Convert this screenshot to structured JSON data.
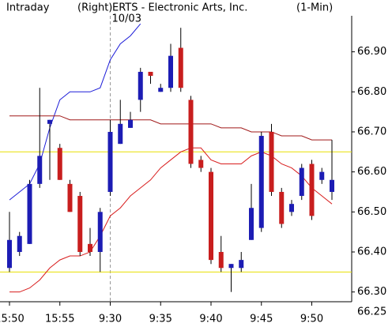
{
  "chart_data": {
    "type": "candlestick",
    "title": "ERTS - Electronic Arts, Inc.",
    "left_label": "Intraday",
    "side_label": "(Right)",
    "interval_label": "(1-Min)",
    "session_label": "10/03",
    "session_index": 10,
    "categories": [
      "15:50",
      null,
      null,
      null,
      null,
      "15:55",
      null,
      null,
      null,
      null,
      "9:30",
      null,
      null,
      null,
      null,
      "9:35",
      null,
      null,
      null,
      null,
      "9:40",
      null,
      null,
      null,
      null,
      "9:45",
      null,
      null,
      null,
      null,
      "9:50",
      null,
      null
    ],
    "open": [
      66.36,
      66.4,
      66.42,
      66.57,
      66.72,
      66.66,
      66.57,
      66.54,
      66.42,
      66.4,
      66.55,
      66.67,
      66.71,
      66.78,
      66.85,
      66.8,
      66.81,
      66.91,
      66.78,
      66.63,
      66.6,
      66.4,
      66.36,
      66.36,
      66.43,
      66.46,
      66.7,
      66.55,
      66.5,
      66.54,
      66.62,
      66.58,
      66.55
    ],
    "high": [
      66.5,
      66.45,
      66.58,
      66.81,
      66.73,
      66.67,
      66.58,
      66.55,
      66.46,
      66.51,
      66.73,
      66.78,
      66.75,
      66.86,
      66.85,
      66.82,
      66.92,
      66.96,
      66.79,
      66.64,
      66.61,
      66.44,
      66.37,
      66.4,
      66.57,
      66.7,
      66.72,
      66.56,
      66.53,
      66.62,
      66.63,
      66.61,
      66.68
    ],
    "low": [
      66.35,
      66.39,
      66.42,
      66.56,
      66.58,
      66.58,
      66.5,
      66.39,
      66.39,
      66.35,
      66.54,
      66.67,
      66.71,
      66.75,
      66.82,
      66.8,
      66.8,
      66.8,
      66.61,
      66.6,
      66.37,
      66.35,
      66.3,
      66.35,
      66.43,
      66.45,
      66.54,
      66.46,
      66.49,
      66.53,
      66.48,
      66.57,
      66.53
    ],
    "close": [
      66.43,
      66.44,
      66.57,
      66.64,
      66.73,
      66.58,
      66.5,
      66.4,
      66.4,
      66.5,
      66.7,
      66.72,
      66.73,
      66.85,
      66.84,
      66.81,
      66.89,
      66.81,
      66.62,
      66.61,
      66.38,
      66.36,
      66.37,
      66.38,
      66.51,
      66.69,
      66.55,
      66.47,
      66.52,
      66.61,
      66.49,
      66.6,
      66.58
    ],
    "up_color": "#1c1cb4",
    "down_color": "#c81e1e",
    "series": [
      {
        "color": "#1c1cd8",
        "values": [
          66.53,
          66.55,
          66.57,
          66.62,
          66.71,
          66.78,
          66.8,
          66.8,
          66.8,
          66.81,
          66.88,
          66.92,
          66.94,
          66.97,
          null,
          null,
          null,
          null,
          null,
          null,
          null,
          null,
          null,
          null,
          null,
          null,
          null,
          null,
          null,
          null,
          null,
          null,
          null
        ]
      },
      {
        "color": "#d81c1c",
        "values": [
          66.3,
          66.3,
          66.31,
          66.33,
          66.36,
          66.38,
          66.39,
          66.39,
          66.4,
          66.44,
          66.49,
          66.51,
          66.54,
          66.56,
          66.58,
          66.61,
          66.63,
          66.65,
          66.66,
          66.66,
          66.63,
          66.62,
          66.62,
          66.62,
          66.64,
          66.65,
          66.64,
          66.62,
          66.61,
          66.59,
          66.56,
          66.54,
          66.52
        ]
      },
      {
        "color": "#a01818",
        "values": [
          66.74,
          66.74,
          66.74,
          66.74,
          66.74,
          66.74,
          66.73,
          66.73,
          66.73,
          66.73,
          66.73,
          66.73,
          66.73,
          66.73,
          66.73,
          66.72,
          66.72,
          66.72,
          66.72,
          66.72,
          66.72,
          66.71,
          66.71,
          66.71,
          66.7,
          66.7,
          66.7,
          66.69,
          66.69,
          66.69,
          66.68,
          66.68,
          66.68
        ]
      }
    ],
    "hlines": [
      {
        "value": 66.65,
        "color": "#e8e000"
      },
      {
        "value": 66.35,
        "color": "#e8e000"
      }
    ],
    "ylim": [
      66.25,
      66.99
    ],
    "yticks": [
      {
        "value": 66.25,
        "label": "66.25"
      },
      {
        "value": 66.3,
        "label": "66.30"
      },
      {
        "value": 66.4,
        "label": "66.40"
      },
      {
        "value": 66.5,
        "label": "66.50"
      },
      {
        "value": 66.6,
        "label": "66.60"
      },
      {
        "value": 66.7,
        "label": "66.70"
      },
      {
        "value": 66.8,
        "label": "66.80"
      },
      {
        "value": 66.9,
        "label": "66.90"
      }
    ]
  }
}
